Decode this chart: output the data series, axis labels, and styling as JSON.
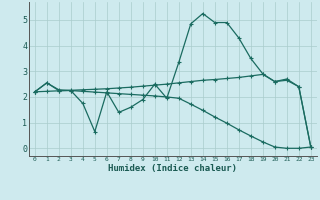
{
  "xlabel": "Humidex (Indice chaleur)",
  "background_color": "#ceeaee",
  "grid_color": "#aacccc",
  "line_color": "#1a6b60",
  "x_ticks": [
    0,
    1,
    2,
    3,
    4,
    5,
    6,
    7,
    8,
    9,
    10,
    11,
    12,
    13,
    14,
    15,
    16,
    17,
    18,
    19,
    20,
    21,
    22,
    23
  ],
  "ylim": [
    -0.3,
    5.7
  ],
  "xlim": [
    -0.5,
    23.5
  ],
  "line1_x": [
    0,
    1,
    2,
    3,
    4,
    5,
    6,
    7,
    8,
    9,
    10,
    11,
    12,
    13,
    14,
    15,
    16,
    17,
    18,
    19,
    20,
    21,
    22,
    23
  ],
  "line1_y": [
    2.2,
    2.55,
    2.25,
    2.25,
    1.75,
    0.65,
    2.2,
    1.4,
    1.6,
    1.9,
    2.5,
    1.95,
    3.35,
    4.85,
    5.25,
    4.9,
    4.9,
    4.3,
    3.5,
    2.9,
    2.6,
    2.7,
    2.4,
    0.05
  ],
  "line2_x": [
    0,
    1,
    2,
    3,
    4,
    5,
    6,
    7,
    8,
    9,
    10,
    11,
    12,
    13,
    14,
    15,
    16,
    17,
    18,
    19,
    20,
    21,
    22,
    23
  ],
  "line2_y": [
    2.2,
    2.22,
    2.24,
    2.26,
    2.28,
    2.3,
    2.32,
    2.35,
    2.38,
    2.42,
    2.46,
    2.5,
    2.55,
    2.6,
    2.65,
    2.68,
    2.72,
    2.76,
    2.82,
    2.88,
    2.6,
    2.65,
    2.4,
    0.05
  ],
  "line3_x": [
    0,
    1,
    2,
    3,
    4,
    5,
    6,
    7,
    8,
    9,
    10,
    11,
    12,
    13,
    14,
    15,
    16,
    17,
    18,
    19,
    20,
    21,
    22,
    23
  ],
  "line3_y": [
    2.2,
    2.55,
    2.28,
    2.25,
    2.22,
    2.19,
    2.16,
    2.13,
    2.1,
    2.07,
    2.04,
    2.0,
    1.95,
    1.72,
    1.48,
    1.22,
    0.98,
    0.72,
    0.48,
    0.25,
    0.05,
    0.0,
    0.0,
    0.05
  ]
}
